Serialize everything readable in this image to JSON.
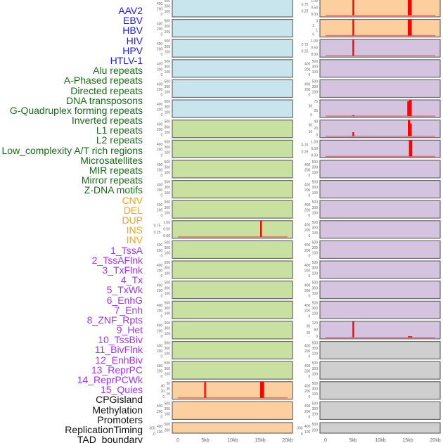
{
  "labels": [
    {
      "text": "AAV2",
      "color": "#1a1aff"
    },
    {
      "text": "EBV",
      "color": "#1a1aff"
    },
    {
      "text": "HBV",
      "color": "#1a1aff"
    },
    {
      "text": "HIV",
      "color": "#1a1aff"
    },
    {
      "text": "HPV",
      "color": "#1a1aff"
    },
    {
      "text": "HTLV-1",
      "color": "#1a1aff"
    },
    {
      "text": "Alu repeats",
      "color": "#1a6b1a"
    },
    {
      "text": "A-Phased repeats",
      "color": "#1a6b1a"
    },
    {
      "text": "Directed repeats",
      "color": "#1a6b1a"
    },
    {
      "text": "DNA transposons",
      "color": "#1a6b1a"
    },
    {
      "text": "G-Quadruplex forming repeats",
      "color": "#1a6b1a"
    },
    {
      "text": "Inverted repeats",
      "color": "#1a6b1a"
    },
    {
      "text": "L1 repeats",
      "color": "#1a6b1a"
    },
    {
      "text": "L2 repeats",
      "color": "#1a6b1a"
    },
    {
      "text": "Low_complexity A/T rich regions",
      "color": "#1a6b1a"
    },
    {
      "text": "Microsatellites",
      "color": "#1a6b1a"
    },
    {
      "text": "MIR repeats",
      "color": "#1a6b1a"
    },
    {
      "text": "Mirror repeats",
      "color": "#1a6b1a"
    },
    {
      "text": "Z-DNA motifs",
      "color": "#1a6b1a"
    },
    {
      "text": "CNV",
      "color": "#ffa500"
    },
    {
      "text": "DEL",
      "color": "#ffa500"
    },
    {
      "text": "DUP",
      "color": "#ffa500"
    },
    {
      "text": "INS",
      "color": "#ffa500"
    },
    {
      "text": "INV",
      "color": "#ffa500"
    },
    {
      "text": "1_TssA",
      "color": "#a033ff"
    },
    {
      "text": "2_TssAFlnk",
      "color": "#a033ff"
    },
    {
      "text": "3_TxFlnk",
      "color": "#a033ff"
    },
    {
      "text": "4_Tx",
      "color": "#a033ff"
    },
    {
      "text": "5_TxWk",
      "color": "#a033ff"
    },
    {
      "text": "6_EnhG",
      "color": "#a033ff"
    },
    {
      "text": "7_Enh",
      "color": "#a033ff"
    },
    {
      "text": "8_ZNF_Rpts",
      "color": "#a033ff"
    },
    {
      "text": "9_Het",
      "color": "#a033ff"
    },
    {
      "text": "10_TssBiv",
      "color": "#a033ff"
    },
    {
      "text": "11_BivFlnk",
      "color": "#a033ff"
    },
    {
      "text": "12_EnhBiv",
      "color": "#a033ff"
    },
    {
      "text": "13_ReprPC",
      "color": "#a033ff"
    },
    {
      "text": "14_ReprPCWk",
      "color": "#a033ff"
    },
    {
      "text": "15_Quies",
      "color": "#a033ff"
    },
    {
      "text": "CPGisland",
      "color": "#111111"
    },
    {
      "text": "Methylation",
      "color": "#111111"
    },
    {
      "text": "Promoters",
      "color": "#111111"
    },
    {
      "text": "ReplicationTiming",
      "color": "#111111"
    },
    {
      "text": "TAD_boundary",
      "color": "#111111"
    }
  ],
  "chart_data": {
    "type": "bar",
    "xlabel": "",
    "xlim_kb": [
      0,
      20
    ],
    "x_ticks": [
      "0",
      "5kb",
      "10kb",
      "15kb",
      "20kb"
    ],
    "colors": {
      "blue": "#c8e4ec",
      "green": "#c8e0a0",
      "orange": "#fecf9e",
      "purple": "#d5c4e0",
      "gray": "#cfcfcf",
      "bar": "#ff0000"
    },
    "default_ticks": [
      "0",
      "100",
      "200",
      "300",
      "400",
      "500"
    ],
    "columns": [
      {
        "panels": [
          {
            "bg": "blue"
          },
          {
            "bg": "blue"
          },
          {
            "bg": "blue"
          },
          {
            "bg": "blue"
          },
          {
            "bg": "blue"
          },
          {
            "bg": "blue"
          },
          {
            "bg": "green"
          },
          {
            "bg": "green"
          },
          {
            "bg": "green"
          },
          {
            "bg": "green"
          },
          {
            "bg": "green"
          },
          {
            "bg": "green",
            "ymax": 1,
            "ticks": [
              "0.00",
              "0.25",
              "0.50",
              "0.75",
              "1.00"
            ],
            "bars": [
              {
                "x": 15,
                "w": 0.3,
                "v": 1
              }
            ]
          },
          {
            "bg": "green"
          },
          {
            "bg": "green"
          },
          {
            "bg": "green"
          },
          {
            "bg": "green"
          },
          {
            "bg": "green"
          },
          {
            "bg": "green"
          },
          {
            "bg": "green"
          },
          {
            "bg": "orange",
            "ymax": 50,
            "ticks": [
              "0",
              "10",
              "20",
              "30",
              "40",
              "50"
            ],
            "bars": [
              {
                "x": 4.8,
                "w": 0.3,
                "v": 50
              },
              {
                "x": 15,
                "w": 0.7,
                "v": 50
              }
            ]
          },
          {
            "bg": "orange"
          },
          {
            "bg": "orange"
          }
        ]
      },
      {
        "panels": [
          {
            "bg": "orange",
            "ymax": 1,
            "ticks": [
              "0.00",
              "0.25",
              "0.50",
              "0.75",
              "1.00"
            ],
            "bars": [
              {
                "x": 4.9,
                "w": 0.3,
                "v": 1
              },
              {
                "x": 15,
                "w": 0.7,
                "v": 1
              }
            ]
          },
          {
            "bg": "orange",
            "ymax": 3,
            "ticks": [
              "0",
              "1",
              "2",
              "3"
            ],
            "bars": [
              {
                "x": 4.9,
                "w": 0.3,
                "v": 3
              },
              {
                "x": 15,
                "w": 0.7,
                "v": 3
              }
            ]
          },
          {
            "bg": "purple",
            "ymax": 1,
            "ticks": [
              "0.00",
              "0.25",
              "0.50",
              "0.75",
              "1.00"
            ],
            "bars": [
              {
                "x": 4.9,
                "w": 0.3,
                "v": 1
              }
            ]
          },
          {
            "bg": "purple"
          },
          {
            "bg": "purple"
          },
          {
            "bg": "purple",
            "ymax": 90,
            "ticks": [
              "0",
              "25",
              "50",
              "75"
            ],
            "bars": [
              {
                "x": 4.9,
                "w": 0.3,
                "v": 5
              },
              {
                "x": 14.9,
                "w": 0.3,
                "v": 82
              },
              {
                "x": 15.2,
                "w": 0.5,
                "v": 90
              }
            ]
          },
          {
            "bg": "purple",
            "ymax": 48,
            "ticks": [
              "0",
              "10",
              "20",
              "30",
              "40"
            ],
            "bars": [
              {
                "x": 4.9,
                "w": 0.3,
                "v": 12
              },
              {
                "x": 15,
                "w": 0.4,
                "v": 48
              },
              {
                "x": 15.4,
                "w": 0.3,
                "v": 38
              }
            ]
          },
          {
            "bg": "purple",
            "ymax": 1,
            "ticks": [
              "0.00",
              "0.25",
              "0.50",
              "0.75",
              "1.00"
            ],
            "bars": [
              {
                "x": 15.2,
                "w": 0.6,
                "v": 1
              }
            ]
          },
          {
            "bg": "purple"
          },
          {
            "bg": "purple"
          },
          {
            "bg": "purple"
          },
          {
            "bg": "purple"
          },
          {
            "bg": "purple"
          },
          {
            "bg": "purple"
          },
          {
            "bg": "purple"
          },
          {
            "bg": "purple"
          },
          {
            "bg": "purple",
            "ymax": 120,
            "ticks": [
              "0",
              "30",
              "60",
              "90",
              "120"
            ],
            "bars": [
              {
                "x": 4.9,
                "w": 0.3,
                "v": 120
              },
              {
                "x": 15,
                "w": 0.8,
                "v": 9
              }
            ]
          },
          {
            "bg": "gray"
          },
          {
            "bg": "gray"
          },
          {
            "bg": "gray"
          },
          {
            "bg": "gray"
          },
          {
            "bg": "gray"
          }
        ]
      }
    ]
  }
}
